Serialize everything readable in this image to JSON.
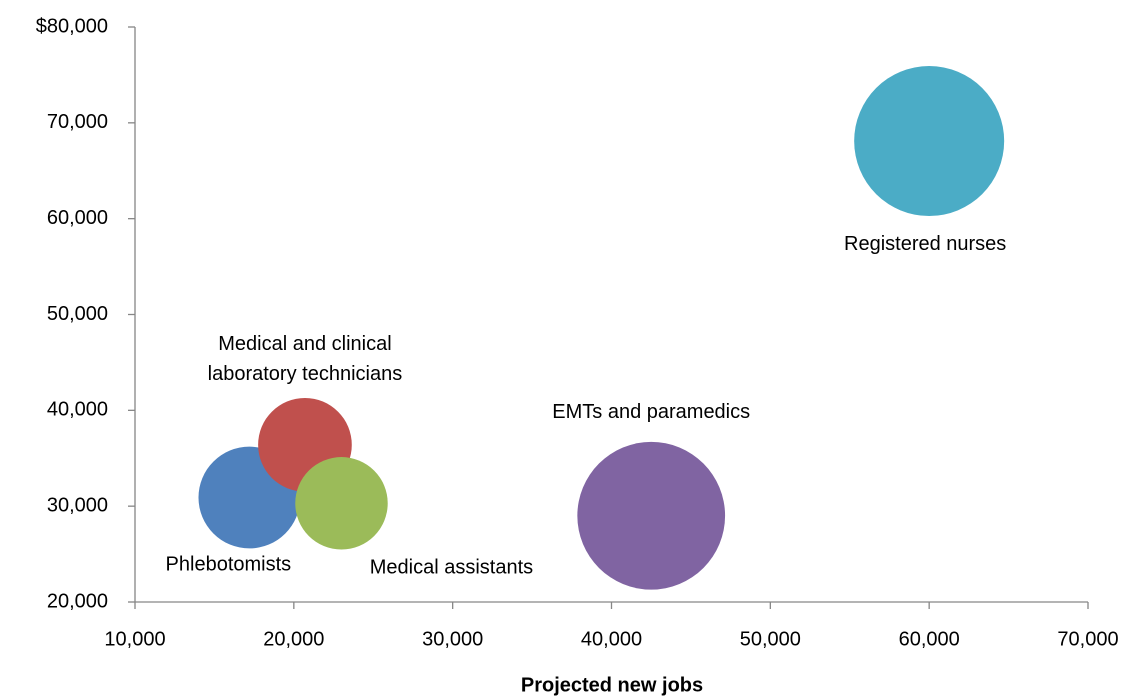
{
  "chart_data": {
    "type": "bubble",
    "x_label": "Projected new jobs",
    "xlim": [
      10000,
      70000
    ],
    "xticks": [
      {
        "value": 10000,
        "label": "10,000"
      },
      {
        "value": 20000,
        "label": "20,000"
      },
      {
        "value": 30000,
        "label": "30,000"
      },
      {
        "value": 40000,
        "label": "40,000"
      },
      {
        "value": 50000,
        "label": "50,000"
      },
      {
        "value": 60000,
        "label": "60,000"
      },
      {
        "value": 70000,
        "label": "70,000"
      }
    ],
    "ylim": [
      20000,
      80000
    ],
    "yticks": [
      {
        "value": 20000,
        "label": "20,000"
      },
      {
        "value": 30000,
        "label": "30,000"
      },
      {
        "value": 40000,
        "label": "40,000"
      },
      {
        "value": 50000,
        "label": "50,000"
      },
      {
        "value": 60000,
        "label": "60,000"
      },
      {
        "value": 70000,
        "label": "70,000"
      },
      {
        "value": 80000,
        "label": "$80,000"
      }
    ],
    "series": [
      {
        "name": "Phlebotomists",
        "color": "#4f81bd",
        "x": [
          17200
        ],
        "values": [
          30900
        ],
        "sizes": [
          46
        ]
      },
      {
        "name": "Medical and clinical laboratory technicians",
        "color": "#c0504d",
        "x": [
          20700
        ],
        "values": [
          36400
        ],
        "sizes": [
          39
        ]
      },
      {
        "name": "Medical assistants",
        "color": "#9bbb59",
        "x": [
          23000
        ],
        "values": [
          30300
        ],
        "sizes": [
          38
        ]
      },
      {
        "name": "EMTs and paramedics",
        "color": "#8064a2",
        "x": [
          42500
        ],
        "values": [
          29000
        ],
        "sizes": [
          97
        ]
      },
      {
        "name": "Registered nurses",
        "color": "#4bacc6",
        "x": [
          60000
        ],
        "values": [
          68100
        ],
        "sizes": [
          100
        ]
      }
    ]
  }
}
